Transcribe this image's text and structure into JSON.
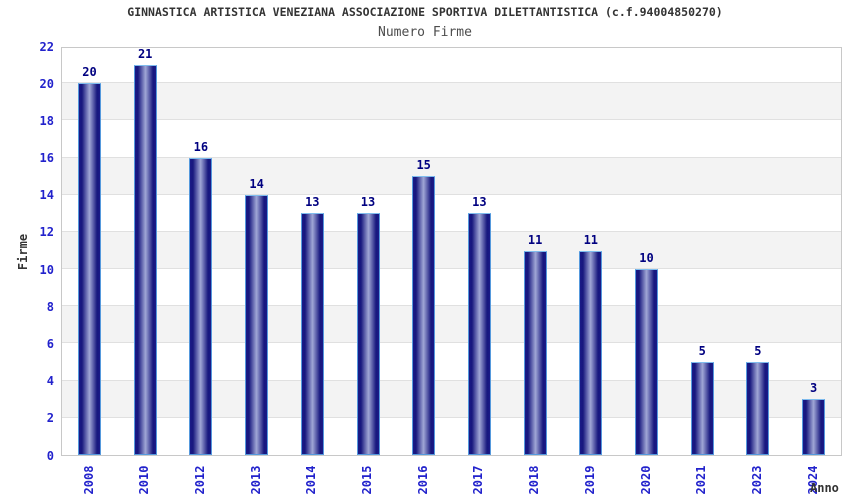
{
  "header": {
    "title": "GINNASTICA ARTISTICA VENEZIANA ASSOCIAZIONE SPORTIVA DILETTANTISTICA (c.f.94004850270)",
    "subtitle": "Numero Firme"
  },
  "chart_data": {
    "type": "bar",
    "title": "GINNASTICA ARTISTICA VENEZIANA ASSOCIAZIONE SPORTIVA DILETTANTISTICA (c.f.94004850270)",
    "subtitle": "Numero Firme",
    "xlabel": "Anno",
    "ylabel": "Firme",
    "categories": [
      "2008",
      "2010",
      "2012",
      "2013",
      "2014",
      "2015",
      "2016",
      "2017",
      "2018",
      "2019",
      "2020",
      "2021",
      "2023",
      "2024"
    ],
    "values": [
      20,
      21,
      16,
      14,
      13,
      13,
      15,
      13,
      11,
      11,
      10,
      5,
      5,
      3
    ],
    "ylim": [
      0,
      22
    ],
    "ytick_step": 2,
    "grid": "horizontal-bands",
    "legend_position": "none",
    "colors": {
      "bar_edge_border": "#5599dd",
      "bar_top_border": "#7fbcee",
      "bar_dark": "#17177e",
      "bar_darker_edge": "#1a1a87",
      "bar_mid": "#a0a7d6",
      "value_label": "#000080",
      "tick_label": "#2222cc",
      "axis_label": "#333333",
      "title": "#333333",
      "subtitle": "#4d4d4d",
      "band_gray": "#f3f3f3",
      "band_white": "#ffffff",
      "grid_line": "#e0e0e0",
      "plot_border": "#c8c8c8"
    }
  }
}
